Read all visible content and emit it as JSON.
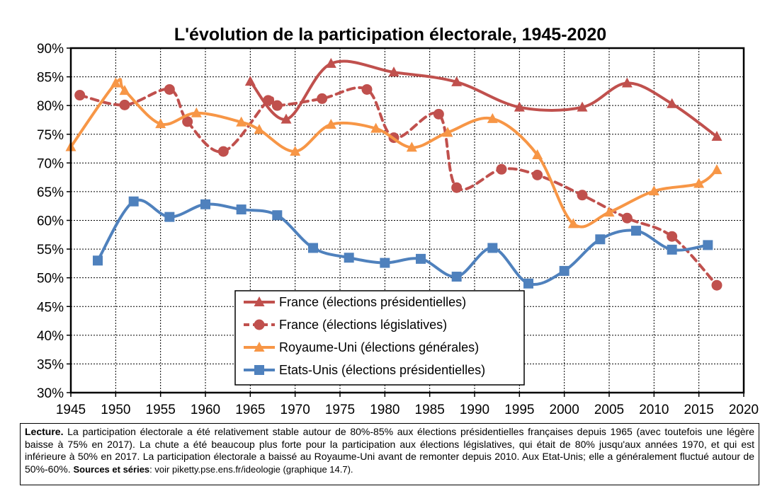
{
  "chart_data": {
    "type": "line",
    "title": "L'évolution de la participation électorale, 1945-2020",
    "xlim": [
      1945,
      2020
    ],
    "ylim": [
      30,
      90
    ],
    "x_ticks": [
      "1945",
      "1950",
      "1955",
      "1960",
      "1965",
      "1970",
      "1975",
      "1980",
      "1985",
      "1990",
      "1995",
      "2000",
      "2005",
      "2010",
      "2015",
      "2020"
    ],
    "y_ticks": [
      "90%",
      "85%",
      "80%",
      "75%",
      "70%",
      "65%",
      "60%",
      "55%",
      "50%",
      "45%",
      "40%",
      "35%",
      "30%"
    ],
    "grid": true,
    "legend_position": "bottom-center",
    "series": [
      {
        "name": "France (élections présidentielles)",
        "color": "#c0504d",
        "marker": "triangle",
        "dashed": false,
        "x": [
          1965,
          1969,
          1974,
          1981,
          1988,
          1995,
          2002,
          2007,
          2012,
          2017
        ],
        "y": [
          84.2,
          77.6,
          87.3,
          85.8,
          84.1,
          79.7,
          79.7,
          83.9,
          80.3,
          74.6
        ]
      },
      {
        "name": "France (élections législatives)",
        "color": "#c0504d",
        "marker": "circle",
        "dashed": true,
        "x": [
          1946,
          1951,
          1956,
          1958,
          1962,
          1967,
          1968,
          1973,
          1978,
          1981,
          1986,
          1988,
          1993,
          1997,
          2002,
          2007,
          2012,
          2017
        ],
        "y": [
          81.8,
          80.1,
          82.8,
          77.2,
          72.0,
          80.9,
          80.0,
          81.2,
          82.8,
          74.4,
          78.5,
          65.7,
          68.9,
          67.9,
          64.4,
          60.4,
          57.2,
          48.7
        ]
      },
      {
        "name": "Royaume-Uni (élections générales)",
        "color": "#f79646",
        "marker": "triangle",
        "dashed": false,
        "x": [
          1945,
          1950,
          1951,
          1955,
          1959,
          1964,
          1966,
          1970,
          1974,
          1979,
          1983,
          1987,
          1992,
          1997,
          2001,
          2005,
          2010,
          2015,
          2017
        ],
        "y": [
          72.8,
          83.9,
          82.6,
          76.8,
          78.7,
          77.1,
          75.8,
          72.0,
          76.7,
          76.0,
          72.7,
          75.3,
          77.7,
          71.4,
          59.4,
          61.4,
          65.1,
          66.4,
          68.8
        ]
      },
      {
        "name": "Etats-Unis (élections présidentielles)",
        "color": "#4f81bd",
        "marker": "square",
        "dashed": false,
        "x": [
          1948,
          1952,
          1956,
          1960,
          1964,
          1968,
          1972,
          1976,
          1980,
          1984,
          1988,
          1992,
          1996,
          2000,
          2004,
          2008,
          2012,
          2016
        ],
        "y": [
          53.0,
          63.3,
          60.6,
          62.8,
          61.9,
          60.9,
          55.2,
          53.5,
          52.6,
          53.3,
          50.2,
          55.2,
          49.0,
          51.2,
          56.7,
          58.2,
          54.9,
          55.7
        ]
      }
    ]
  },
  "note": {
    "lead": "Lecture.",
    "body": " La participation électorale a été relativement stable autour de 80%-85% aux élections présidentielles françaises depuis 1965 (avec toutefois une légère baisse à 75% en 2017). La chute a été beaucoup plus forte pour la participation aux élections législatives, qui était de 80% jusqu'aux années 1970, et qui est inférieure à 50% en 2017. La participation électorale a baissé au Royaume-Uni avant de remonter depuis 2010. Aux Etat-Unis; elle a généralement fluctué autour de 50%-60%.",
    "sources_label": "Sources et séries",
    "sources_text": ": voir piketty.pse.ens.fr/ideologie (graphique 14.7)."
  }
}
